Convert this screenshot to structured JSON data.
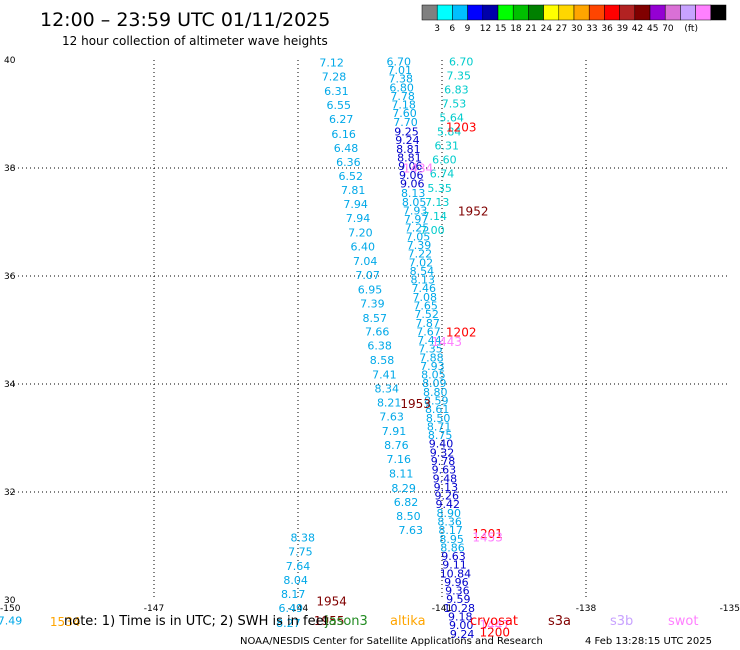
{
  "header": {
    "title": "12:00 – 23:59 UTC 01/11/2025",
    "subtitle": "12 hour collection of altimeter wave heights"
  },
  "colorbar": {
    "colors": [
      "#808080",
      "#00ffff",
      "#00bfff",
      "#0000ff",
      "#0000aa",
      "#00ff00",
      "#00c000",
      "#008000",
      "#ffff00",
      "#ffd700",
      "#ffa500",
      "#ff4500",
      "#ff0000",
      "#b22222",
      "#800000",
      "#9400d3",
      "#da70d6",
      "#c8a2ff",
      "#ff80ff",
      "#000000"
    ],
    "labels": [
      "3",
      "6",
      "9",
      "12",
      "15",
      "18",
      "21",
      "24",
      "27",
      "30",
      "33",
      "36",
      "39",
      "42",
      "45",
      "70",
      "(ft)"
    ]
  },
  "footer": {
    "note": "note:  1) Time is in UTC; 2) SWH is in feet",
    "credit": "NOAA/NESDIS Center for Satellite Applications and Research",
    "timestamp": "4 Feb 13:28:15 UTC 2025"
  },
  "satellites": [
    {
      "name": "jason3",
      "color": "#228b22"
    },
    {
      "name": "altika",
      "color": "#ffa500"
    },
    {
      "name": "cryosat",
      "color": "#ff0000"
    },
    {
      "name": "s3a",
      "color": "#800000"
    },
    {
      "name": "s3b",
      "color": "#c8a2ff"
    },
    {
      "name": "swot",
      "color": "#ff80ff"
    }
  ],
  "chart_data": {
    "type": "scatter",
    "xlim": [
      -150,
      -135
    ],
    "ylim": [
      30,
      40
    ],
    "x_ticks": [
      "-150",
      "-147",
      "-144",
      "-141",
      "-138",
      "-135"
    ],
    "y_ticks": [
      "30",
      "32",
      "34",
      "36",
      "38",
      "40"
    ],
    "grid": true,
    "tracks": [
      {
        "color": "#00a8e8",
        "points": [
          {
            "x": -143.3,
            "y": 39.88,
            "label": "7.12"
          },
          {
            "x": -143.25,
            "y": 39.62,
            "label": "7.28"
          },
          {
            "x": -143.2,
            "y": 39.35,
            "label": "6.31"
          },
          {
            "x": -143.15,
            "y": 39.09,
            "label": "6.55"
          },
          {
            "x": -143.1,
            "y": 38.83,
            "label": "6.27"
          },
          {
            "x": -143.05,
            "y": 38.56,
            "label": "6.16"
          },
          {
            "x": -143.0,
            "y": 38.3,
            "label": "6.48"
          },
          {
            "x": -142.95,
            "y": 38.04,
            "label": "6.36"
          },
          {
            "x": -142.9,
            "y": 37.78,
            "label": "6.52"
          },
          {
            "x": -142.85,
            "y": 37.52,
            "label": "7.81"
          },
          {
            "x": -142.8,
            "y": 37.26,
            "label": "7.94"
          },
          {
            "x": -142.75,
            "y": 37.0,
            "label": "7.94"
          },
          {
            "x": -142.7,
            "y": 36.73,
            "label": "7.20"
          },
          {
            "x": -142.65,
            "y": 36.47,
            "label": "6.40"
          },
          {
            "x": -142.6,
            "y": 36.2,
            "label": "7.04"
          },
          {
            "x": -142.55,
            "y": 35.94,
            "label": "7.07"
          },
          {
            "x": -142.5,
            "y": 35.68,
            "label": "6.95"
          },
          {
            "x": -142.45,
            "y": 35.42,
            "label": "7.39"
          },
          {
            "x": -142.4,
            "y": 35.15,
            "label": "8.57"
          },
          {
            "x": -142.35,
            "y": 34.9,
            "label": "7.66"
          },
          {
            "x": -142.3,
            "y": 34.64,
            "label": "6.38"
          },
          {
            "x": -142.25,
            "y": 34.37,
            "label": "8.58"
          },
          {
            "x": -142.2,
            "y": 34.1,
            "label": "7.41"
          },
          {
            "x": -142.15,
            "y": 33.84,
            "label": "8.34"
          },
          {
            "x": -142.1,
            "y": 33.58,
            "label": "8.21"
          },
          {
            "x": -142.05,
            "y": 33.32,
            "label": "7.63"
          },
          {
            "x": -142.0,
            "y": 33.06,
            "label": "7.91"
          },
          {
            "x": -141.95,
            "y": 32.8,
            "label": "8.76"
          },
          {
            "x": -141.9,
            "y": 32.54,
            "label": "7.16"
          },
          {
            "x": -141.85,
            "y": 32.27,
            "label": "8.11"
          },
          {
            "x": -141.8,
            "y": 32.0,
            "label": "8.29"
          },
          {
            "x": -141.75,
            "y": 31.74,
            "label": "6.82"
          },
          {
            "x": -141.7,
            "y": 31.48,
            "label": "8.50"
          },
          {
            "x": -141.65,
            "y": 31.22,
            "label": "7.63"
          }
        ]
      },
      {
        "color": "#00a8e8",
        "points": [
          {
            "x": -143.9,
            "y": 31.08,
            "label": "8.38"
          },
          {
            "x": -143.95,
            "y": 30.82,
            "label": "7.75"
          },
          {
            "x": -144.0,
            "y": 30.56,
            "label": "7.64"
          },
          {
            "x": -144.05,
            "y": 30.3,
            "label": "8.04"
          },
          {
            "x": -144.1,
            "y": 30.04,
            "label": "8.17"
          },
          {
            "x": -144.15,
            "y": 29.78,
            "label": "6.49"
          },
          {
            "x": -144.2,
            "y": 29.5,
            "label": "8.27"
          }
        ]
      },
      {
        "color": "#00cccc",
        "points": [
          {
            "x": -140.6,
            "y": 39.9,
            "label": "6.70"
          },
          {
            "x": -140.65,
            "y": 39.64,
            "label": "7.35"
          },
          {
            "x": -140.7,
            "y": 39.38,
            "label": "6.83"
          },
          {
            "x": -140.75,
            "y": 39.12,
            "label": "7.53"
          },
          {
            "x": -140.8,
            "y": 38.86,
            "label": "5.64"
          },
          {
            "x": -140.85,
            "y": 38.6,
            "label": "5.84"
          },
          {
            "x": -140.9,
            "y": 38.34,
            "label": "6.31"
          },
          {
            "x": -140.95,
            "y": 38.08,
            "label": "6.60"
          },
          {
            "x": -141.0,
            "y": 37.82,
            "label": "6.74"
          },
          {
            "x": -141.05,
            "y": 37.56,
            "label": "5.35"
          },
          {
            "x": -141.1,
            "y": 37.3,
            "label": "7.13"
          },
          {
            "x": -141.15,
            "y": 37.04,
            "label": "7.14"
          },
          {
            "x": -141.2,
            "y": 36.78,
            "label": "7.00"
          }
        ]
      },
      {
        "color": "#00a8e8",
        "points": [
          {
            "x": -141.9,
            "y": 39.9,
            "label": "6.70"
          },
          {
            "x": -141.88,
            "y": 39.74,
            "label": "7.01"
          },
          {
            "x": -141.86,
            "y": 39.58,
            "label": "7.38"
          },
          {
            "x": -141.84,
            "y": 39.42,
            "label": "6.80"
          },
          {
            "x": -141.82,
            "y": 39.26,
            "label": "7.78"
          },
          {
            "x": -141.8,
            "y": 39.1,
            "label": "7.18"
          },
          {
            "x": -141.78,
            "y": 38.94,
            "label": "7.60"
          },
          {
            "x": -141.76,
            "y": 38.78,
            "label": "7.70"
          }
        ]
      },
      {
        "color": "#0000cc",
        "points": [
          {
            "x": -141.74,
            "y": 38.6,
            "label": "9.25"
          },
          {
            "x": -141.72,
            "y": 38.44,
            "label": "9.24"
          },
          {
            "x": -141.7,
            "y": 38.28,
            "label": "8.81"
          },
          {
            "x": -141.68,
            "y": 38.12,
            "label": "8.81"
          },
          {
            "x": -141.66,
            "y": 37.96,
            "label": "9.06"
          },
          {
            "x": -141.64,
            "y": 37.8,
            "label": "9.06"
          },
          {
            "x": -141.62,
            "y": 37.64,
            "label": "9.06"
          }
        ]
      },
      {
        "color": "#00a8e8",
        "points": [
          {
            "x": -141.6,
            "y": 37.46,
            "label": "8.13"
          },
          {
            "x": -141.58,
            "y": 37.3,
            "label": "8.05"
          },
          {
            "x": -141.56,
            "y": 37.14,
            "label": "7.93"
          },
          {
            "x": -141.54,
            "y": 36.98,
            "label": "7.97"
          },
          {
            "x": -141.52,
            "y": 36.82,
            "label": "7.25"
          },
          {
            "x": -141.5,
            "y": 36.66,
            "label": "7.05"
          },
          {
            "x": -141.48,
            "y": 36.5,
            "label": "7.39"
          },
          {
            "x": -141.46,
            "y": 36.34,
            "label": "7.22"
          },
          {
            "x": -141.44,
            "y": 36.18,
            "label": "7.02"
          },
          {
            "x": -141.42,
            "y": 36.02,
            "label": "8.54"
          },
          {
            "x": -141.4,
            "y": 35.86,
            "label": "8.13"
          },
          {
            "x": -141.38,
            "y": 35.7,
            "label": "7.46"
          },
          {
            "x": -141.36,
            "y": 35.54,
            "label": "7.08"
          },
          {
            "x": -141.34,
            "y": 35.38,
            "label": "7.65"
          },
          {
            "x": -141.32,
            "y": 35.22,
            "label": "7.52"
          },
          {
            "x": -141.3,
            "y": 35.06,
            "label": "7.87"
          },
          {
            "x": -141.28,
            "y": 34.9,
            "label": "7.67"
          },
          {
            "x": -141.26,
            "y": 34.74,
            "label": "7.44"
          },
          {
            "x": -141.24,
            "y": 34.58,
            "label": "7.35"
          },
          {
            "x": -141.22,
            "y": 34.42,
            "label": "7.88"
          },
          {
            "x": -141.2,
            "y": 34.26,
            "label": "7.93"
          },
          {
            "x": -141.18,
            "y": 34.1,
            "label": "8.05"
          },
          {
            "x": -141.16,
            "y": 33.94,
            "label": "8.09"
          },
          {
            "x": -141.14,
            "y": 33.78,
            "label": "8.80"
          },
          {
            "x": -141.12,
            "y": 33.62,
            "label": "8.59"
          },
          {
            "x": -141.1,
            "y": 33.46,
            "label": "8.61"
          },
          {
            "x": -141.08,
            "y": 33.3,
            "label": "8.50"
          },
          {
            "x": -141.06,
            "y": 33.14,
            "label": "8.71"
          },
          {
            "x": -141.04,
            "y": 32.98,
            "label": "8.75"
          }
        ]
      },
      {
        "color": "#0000cc",
        "points": [
          {
            "x": -141.02,
            "y": 32.82,
            "label": "9.40"
          },
          {
            "x": -141.0,
            "y": 32.66,
            "label": "9.32"
          },
          {
            "x": -140.98,
            "y": 32.5,
            "label": "9.78"
          },
          {
            "x": -140.96,
            "y": 32.34,
            "label": "9.63"
          },
          {
            "x": -140.94,
            "y": 32.18,
            "label": "9.48"
          },
          {
            "x": -140.92,
            "y": 32.02,
            "label": "9.13"
          },
          {
            "x": -140.9,
            "y": 31.86,
            "label": "9.26"
          },
          {
            "x": -140.88,
            "y": 31.7,
            "label": "9.42"
          }
        ]
      },
      {
        "color": "#00a8e8",
        "points": [
          {
            "x": -140.86,
            "y": 31.54,
            "label": "8.90"
          },
          {
            "x": -140.84,
            "y": 31.38,
            "label": "8.36"
          },
          {
            "x": -140.82,
            "y": 31.22,
            "label": "8.17"
          },
          {
            "x": -140.8,
            "y": 31.06,
            "label": "8.95"
          },
          {
            "x": -140.78,
            "y": 30.9,
            "label": "8.86"
          }
        ]
      },
      {
        "color": "#0000cc",
        "points": [
          {
            "x": -140.76,
            "y": 30.74,
            "label": "9.63"
          },
          {
            "x": -140.74,
            "y": 30.58,
            "label": "9.11"
          },
          {
            "x": -140.72,
            "y": 30.42,
            "label": "10.84"
          },
          {
            "x": -140.7,
            "y": 30.26,
            "label": "9.96"
          },
          {
            "x": -140.68,
            "y": 30.1,
            "label": "9.36"
          },
          {
            "x": -140.66,
            "y": 29.94,
            "label": "9.59"
          },
          {
            "x": -140.64,
            "y": 29.78,
            "label": "10.28"
          },
          {
            "x": -140.62,
            "y": 29.62,
            "label": "9.18"
          },
          {
            "x": -140.6,
            "y": 29.46,
            "label": "9.00"
          },
          {
            "x": -140.58,
            "y": 29.3,
            "label": "9.24"
          }
        ]
      },
      {
        "color": "#00a8e8",
        "points": [
          {
            "x": -150.0,
            "y": 29.55,
            "label": "7.49"
          }
        ]
      }
    ],
    "time_labels": [
      {
        "x": -140.6,
        "y": 38.68,
        "text": "1203",
        "color": "#ff0000"
      },
      {
        "x": -141.5,
        "y": 37.92,
        "text": "1434",
        "color": "#ff80ff"
      },
      {
        "x": -140.35,
        "y": 37.12,
        "text": "1952",
        "color": "#800000"
      },
      {
        "x": -140.6,
        "y": 34.88,
        "text": "1202",
        "color": "#ff0000"
      },
      {
        "x": -140.9,
        "y": 34.7,
        "text": "1443",
        "color": "#ff80ff"
      },
      {
        "x": -141.55,
        "y": 33.56,
        "text": "1953",
        "color": "#800000"
      },
      {
        "x": -140.05,
        "y": 31.15,
        "text": "1201",
        "color": "#ff0000"
      },
      {
        "x": -140.05,
        "y": 31.08,
        "text": "1453",
        "color": "#ff80ff"
      },
      {
        "x": -143.3,
        "y": 29.9,
        "text": "1954",
        "color": "#800000"
      },
      {
        "x": -143.35,
        "y": 29.54,
        "text": "1955",
        "color": "#800000"
      },
      {
        "x": -148.85,
        "y": 29.52,
        "text": "1534",
        "color": "#ffa500"
      },
      {
        "x": -139.9,
        "y": 29.46,
        "text": "1447",
        "color": "#ff80ff"
      },
      {
        "x": -139.9,
        "y": 29.32,
        "text": "1200",
        "color": "#ff0000"
      }
    ]
  }
}
